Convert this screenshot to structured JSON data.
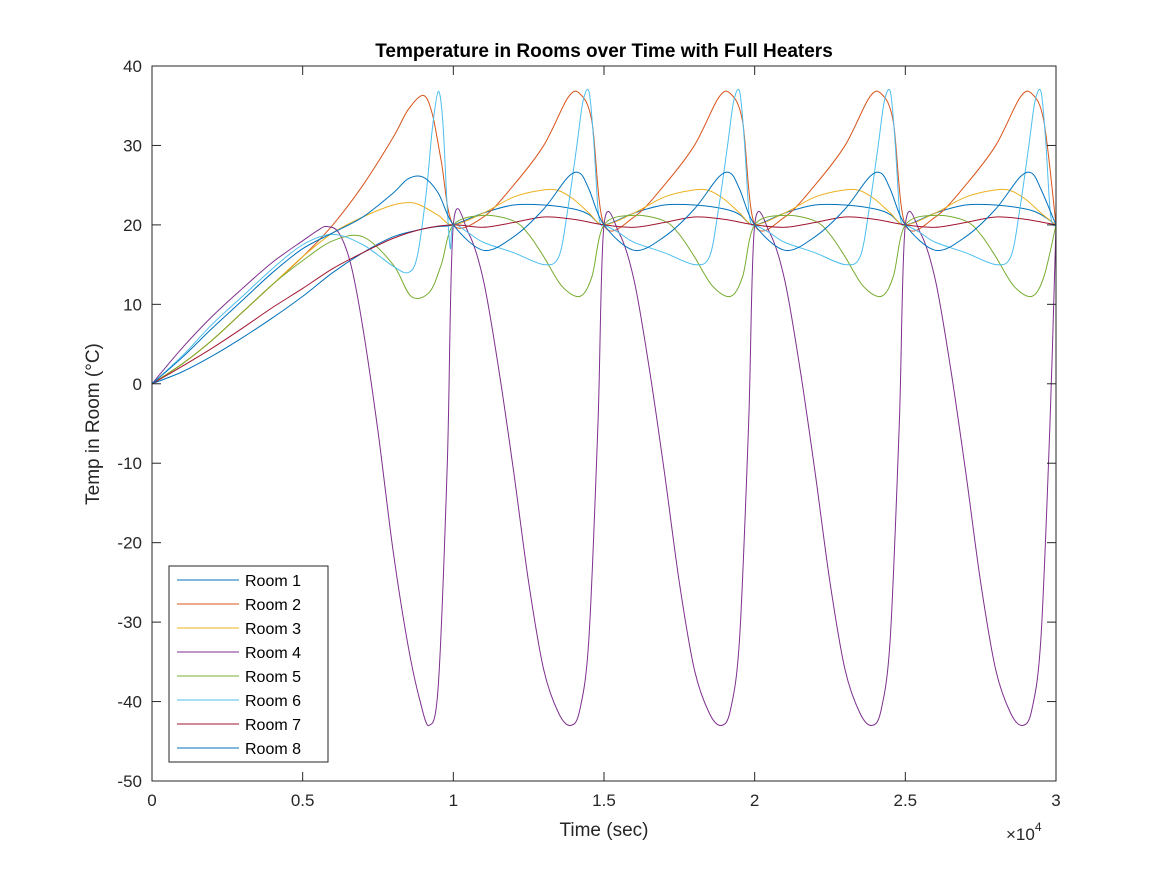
{
  "chart_data": {
    "type": "line",
    "title": "Temperature in Rooms over Time with Full Heaters",
    "xlabel": "Time (sec)",
    "ylabel": "Temp in Room (°C)",
    "x_multiplier_label": "×10",
    "x_multiplier_exponent": "4",
    "xlim": [
      0,
      3
    ],
    "ylim": [
      -50,
      40
    ],
    "x_ticks": [
      0,
      0.5,
      1,
      1.5,
      2,
      2.5,
      3
    ],
    "x_tick_labels": [
      "0",
      "0.5",
      "1",
      "1.5",
      "2",
      "2.5",
      "3"
    ],
    "y_ticks": [
      -50,
      -40,
      -30,
      -20,
      -10,
      0,
      10,
      20,
      30,
      40
    ],
    "y_tick_labels": [
      "-50",
      "-40",
      "-30",
      "-20",
      "-10",
      "0",
      "10",
      "20",
      "30",
      "40"
    ],
    "grid": false,
    "legend_position": "bottom-left",
    "series": [
      {
        "name": "Room 1",
        "color": "#0072BD",
        "x": [
          0,
          0.1,
          0.2,
          0.3,
          0.4,
          0.5,
          0.6,
          0.7,
          0.8,
          0.9,
          0.95,
          1.0,
          1.1,
          1.2,
          1.3,
          1.4,
          1.45,
          1.5,
          1.6,
          1.7,
          1.8,
          1.9,
          1.95,
          2.0,
          2.1,
          2.2,
          2.3,
          2.4,
          2.45,
          2.5,
          2.6,
          2.7,
          2.8,
          2.9,
          2.95,
          3.0
        ],
        "values": [
          0,
          1.5,
          3.5,
          5.8,
          8.3,
          11,
          14,
          16.5,
          18.5,
          19.5,
          19.8,
          20,
          21.5,
          22.5,
          22.5,
          22,
          21.3,
          20,
          21.5,
          22.5,
          22.5,
          22,
          21.3,
          20,
          21.5,
          22.5,
          22.5,
          22,
          21.3,
          20,
          21.5,
          22.5,
          22.5,
          22,
          21.3,
          20
        ]
      },
      {
        "name": "Room 2",
        "color": "#D95319",
        "x": [
          0,
          0.1,
          0.2,
          0.3,
          0.4,
          0.5,
          0.6,
          0.7,
          0.8,
          0.85,
          0.9,
          0.93,
          0.96,
          1.0,
          1.1,
          1.2,
          1.3,
          1.38,
          1.42,
          1.46,
          1.5,
          1.6,
          1.7,
          1.8,
          1.88,
          1.92,
          1.96,
          2.0,
          2.1,
          2.2,
          2.3,
          2.38,
          2.42,
          2.46,
          2.5,
          2.6,
          2.7,
          2.8,
          2.88,
          2.92,
          2.96,
          3.0
        ],
        "values": [
          0,
          2.5,
          5.5,
          9,
          12.5,
          16,
          20,
          25,
          31,
          34.5,
          36.3,
          34,
          28,
          20,
          21,
          25,
          30,
          36,
          36.5,
          33,
          20,
          21,
          25,
          30,
          36,
          36.5,
          33,
          20,
          21,
          25,
          30,
          36,
          36.5,
          33,
          20,
          21,
          25,
          30,
          36,
          36.5,
          33,
          20
        ]
      },
      {
        "name": "Room 3",
        "color": "#EDB120",
        "x": [
          0,
          0.1,
          0.2,
          0.3,
          0.4,
          0.5,
          0.6,
          0.7,
          0.8,
          0.86,
          0.9,
          0.95,
          1.0,
          1.1,
          1.2,
          1.3,
          1.35,
          1.4,
          1.45,
          1.5,
          1.6,
          1.7,
          1.8,
          1.85,
          1.9,
          1.95,
          2.0,
          2.1,
          2.2,
          2.3,
          2.35,
          2.4,
          2.45,
          2.5,
          2.6,
          2.7,
          2.8,
          2.85,
          2.9,
          2.95,
          3.0
        ],
        "values": [
          0,
          2.5,
          5.5,
          9,
          12.5,
          16,
          19,
          21,
          22.5,
          22.8,
          22.3,
          21.2,
          20,
          21.5,
          23.5,
          24.4,
          24.3,
          23.2,
          21.5,
          20,
          21.5,
          23.5,
          24.4,
          24.3,
          23.2,
          21.5,
          20,
          21.5,
          23.5,
          24.4,
          24.3,
          23.2,
          21.5,
          20,
          21.5,
          23.5,
          24.4,
          24.3,
          23.2,
          21.5,
          20
        ]
      },
      {
        "name": "Room 4",
        "color": "#7E2F8E",
        "x": [
          0,
          0.1,
          0.2,
          0.3,
          0.4,
          0.5,
          0.55,
          0.58,
          0.62,
          0.66,
          0.7,
          0.75,
          0.8,
          0.85,
          0.89,
          0.92,
          0.95,
          0.98,
          1.0,
          1.05,
          1.1,
          1.15,
          1.2,
          1.25,
          1.3,
          1.35,
          1.39,
          1.42,
          1.45,
          1.48,
          1.5,
          1.55,
          1.6,
          1.65,
          1.7,
          1.75,
          1.8,
          1.85,
          1.89,
          1.92,
          1.95,
          1.98,
          2.0,
          2.05,
          2.1,
          2.15,
          2.2,
          2.25,
          2.3,
          2.35,
          2.39,
          2.42,
          2.45,
          2.48,
          2.5,
          2.55,
          2.6,
          2.65,
          2.7,
          2.75,
          2.8,
          2.85,
          2.89,
          2.92,
          2.95,
          2.98,
          3.0
        ],
        "values": [
          0,
          4.5,
          8.5,
          12,
          15.3,
          18,
          19.3,
          19.8,
          19,
          15,
          7,
          -6,
          -21,
          -33,
          -40,
          -43,
          -38,
          -10,
          20,
          19,
          13,
          2,
          -11,
          -25,
          -36,
          -41.5,
          -43,
          -41,
          -32,
          -5,
          20,
          19,
          13,
          2,
          -11,
          -25,
          -36,
          -41.5,
          -43,
          -41,
          -32,
          -5,
          20,
          19,
          13,
          2,
          -11,
          -25,
          -36,
          -41.5,
          -43,
          -41,
          -32,
          -5,
          20,
          19,
          13,
          2,
          -11,
          -25,
          -36,
          -41.5,
          -43,
          -41,
          -32,
          -5,
          20
        ]
      },
      {
        "name": "Room 5",
        "color": "#77AC30",
        "x": [
          0,
          0.1,
          0.2,
          0.3,
          0.4,
          0.5,
          0.6,
          0.7,
          0.8,
          0.86,
          0.92,
          0.96,
          1.0,
          1.1,
          1.2,
          1.25,
          1.3,
          1.36,
          1.42,
          1.46,
          1.5,
          1.6,
          1.7,
          1.75,
          1.8,
          1.86,
          1.92,
          1.96,
          2.0,
          2.1,
          2.2,
          2.25,
          2.3,
          2.36,
          2.42,
          2.46,
          2.5,
          2.6,
          2.7,
          2.75,
          2.8,
          2.86,
          2.92,
          2.96,
          3.0
        ],
        "values": [
          0,
          2.5,
          5.5,
          9,
          12.5,
          15.5,
          18,
          18.5,
          15,
          11,
          11.5,
          15,
          20,
          21.2,
          20.5,
          18.8,
          16,
          12.3,
          11,
          13.5,
          20,
          21.2,
          20.5,
          18.8,
          16,
          12.3,
          11,
          13.5,
          20,
          21.2,
          20.5,
          18.8,
          16,
          12.3,
          11,
          13.5,
          20,
          21.2,
          20.5,
          18.8,
          16,
          12.3,
          11,
          13.5,
          20
        ]
      },
      {
        "name": "Room 6",
        "color": "#4DBEEE",
        "x": [
          0,
          0.1,
          0.2,
          0.3,
          0.4,
          0.5,
          0.6,
          0.7,
          0.8,
          0.85,
          0.88,
          0.91,
          0.93,
          0.95,
          0.965,
          0.98,
          0.99,
          1.0,
          1.05,
          1.1,
          1.2,
          1.3,
          1.35,
          1.38,
          1.41,
          1.43,
          1.45,
          1.465,
          1.48,
          1.49,
          1.5,
          1.55,
          1.6,
          1.7,
          1.8,
          1.85,
          1.88,
          1.91,
          1.93,
          1.95,
          1.965,
          1.98,
          1.99,
          2.0,
          2.05,
          2.1,
          2.2,
          2.3,
          2.35,
          2.38,
          2.41,
          2.43,
          2.45,
          2.465,
          2.48,
          2.49,
          2.5,
          2.55,
          2.6,
          2.7,
          2.8,
          2.85,
          2.88,
          2.91,
          2.93,
          2.95,
          2.965,
          2.98,
          2.99,
          3.0
        ],
        "values": [
          0,
          3.5,
          7.5,
          11,
          14.5,
          17.5,
          18.8,
          17.5,
          14.8,
          14,
          16,
          24,
          32,
          36.8,
          33,
          22,
          17,
          20,
          19,
          17.8,
          16.5,
          15,
          16,
          22,
          30,
          35.5,
          36.8,
          31,
          22,
          20,
          20,
          19,
          17.8,
          16.5,
          15,
          16,
          22,
          30,
          35.5,
          36.8,
          31,
          22,
          20,
          20,
          19,
          17.8,
          16.5,
          15,
          16,
          22,
          30,
          35.5,
          36.8,
          31,
          22,
          20,
          20,
          19,
          17.8,
          16.5,
          15,
          16,
          22,
          30,
          35.5,
          36.8,
          31,
          22,
          20,
          20
        ]
      },
      {
        "name": "Room 7",
        "color": "#A2142F",
        "x": [
          0,
          0.1,
          0.2,
          0.3,
          0.4,
          0.5,
          0.6,
          0.7,
          0.8,
          0.9,
          1.0,
          1.1,
          1.2,
          1.3,
          1.4,
          1.5,
          1.6,
          1.7,
          1.8,
          1.9,
          2.0,
          2.1,
          2.2,
          2.3,
          2.4,
          2.5,
          2.6,
          2.7,
          2.8,
          2.9,
          3.0
        ],
        "values": [
          0,
          2.2,
          4.5,
          7,
          9.6,
          12,
          14.5,
          16.5,
          18.3,
          19.5,
          20,
          19.7,
          20.3,
          21,
          20.7,
          20,
          19.7,
          20.3,
          21,
          20.7,
          20,
          19.7,
          20.3,
          21,
          20.7,
          20,
          19.7,
          20.3,
          21,
          20.7,
          20
        ]
      },
      {
        "name": "Room 8",
        "color": "#0072BD",
        "x": [
          0,
          0.1,
          0.2,
          0.3,
          0.4,
          0.5,
          0.6,
          0.7,
          0.8,
          0.85,
          0.9,
          0.95,
          1.0,
          1.1,
          1.2,
          1.3,
          1.38,
          1.42,
          1.45,
          1.5,
          1.6,
          1.7,
          1.8,
          1.88,
          1.92,
          1.95,
          2.0,
          2.1,
          2.2,
          2.3,
          2.38,
          2.42,
          2.45,
          2.5,
          2.6,
          2.7,
          2.8,
          2.88,
          2.92,
          2.95,
          3.0
        ],
        "values": [
          0,
          3.3,
          7,
          10.5,
          14,
          17,
          19,
          21,
          24,
          25.8,
          26,
          24,
          20,
          16.8,
          18.5,
          22,
          26,
          26.5,
          24.5,
          20,
          16.8,
          18.5,
          22,
          26,
          26.5,
          24.5,
          20,
          16.8,
          18.5,
          22,
          26,
          26.5,
          24.5,
          20,
          16.8,
          18.5,
          22,
          26,
          26.5,
          24.5,
          20
        ]
      }
    ]
  }
}
